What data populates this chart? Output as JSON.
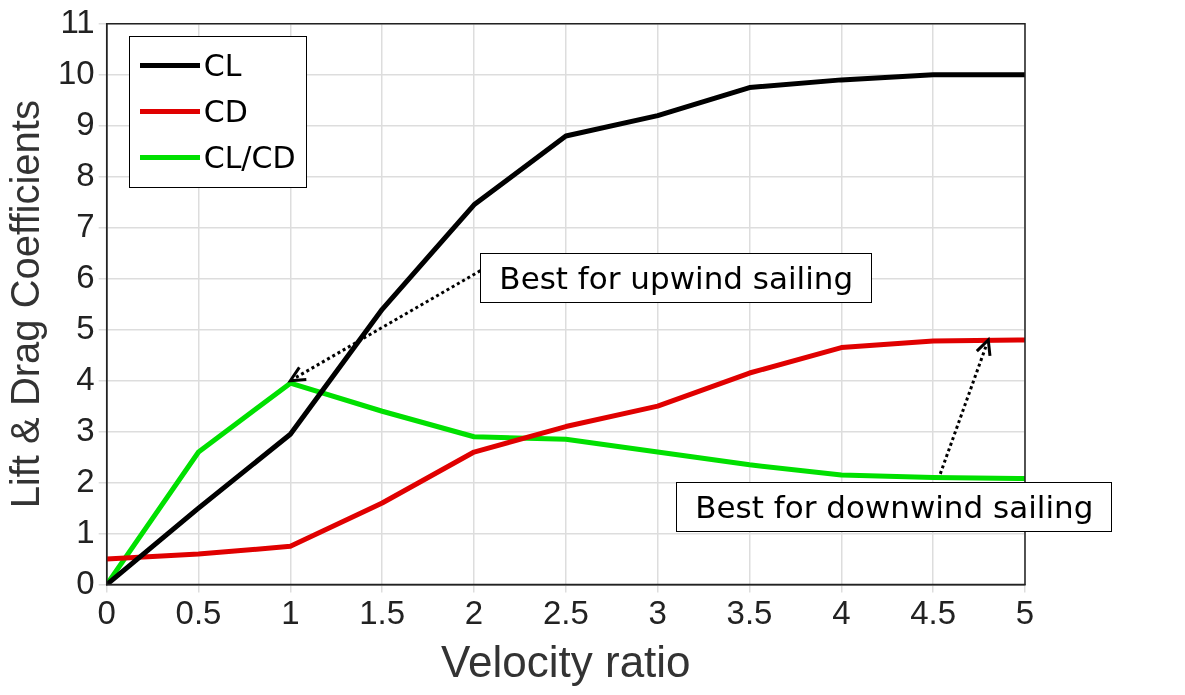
{
  "chart_data": {
    "type": "line",
    "xlabel": "Velocity ratio",
    "ylabel": "Lift & Drag Coefficients",
    "x": [
      0,
      0.5,
      1,
      1.5,
      2,
      2.5,
      3,
      3.5,
      4,
      4.5,
      5
    ],
    "series": [
      {
        "name": "CL",
        "color": "#000000",
        "values": [
          0,
          1.5,
          2.95,
          5.4,
          7.45,
          8.8,
          9.2,
          9.75,
          9.9,
          10,
          10
        ]
      },
      {
        "name": "CD",
        "color": "#e00000",
        "values": [
          0.5,
          0.6,
          0.75,
          1.6,
          2.6,
          3.1,
          3.5,
          4.15,
          4.65,
          4.78,
          4.8
        ]
      },
      {
        "name": "CL/CD",
        "color": "#00e000",
        "values": [
          0,
          2.6,
          3.95,
          3.4,
          2.9,
          2.85,
          2.6,
          2.35,
          2.15,
          2.1,
          2.08
        ]
      }
    ],
    "xlim": [
      0,
      5
    ],
    "xticks": [
      0,
      0.5,
      1,
      1.5,
      2,
      2.5,
      3,
      3.5,
      4,
      4.5,
      5
    ],
    "ylim": [
      0,
      11
    ],
    "yticks": [
      0,
      1,
      2,
      3,
      4,
      5,
      6,
      7,
      8,
      9,
      10,
      11
    ],
    "grid": true,
    "legend": "top left",
    "marker": "none",
    "line_style": "solid",
    "annotations": [
      {
        "text": "Best for upwind sailing",
        "x": 1,
        "y": 4
      },
      {
        "text": "Best for downwind sailing",
        "x": 4.8,
        "y": 4.8
      }
    ]
  }
}
